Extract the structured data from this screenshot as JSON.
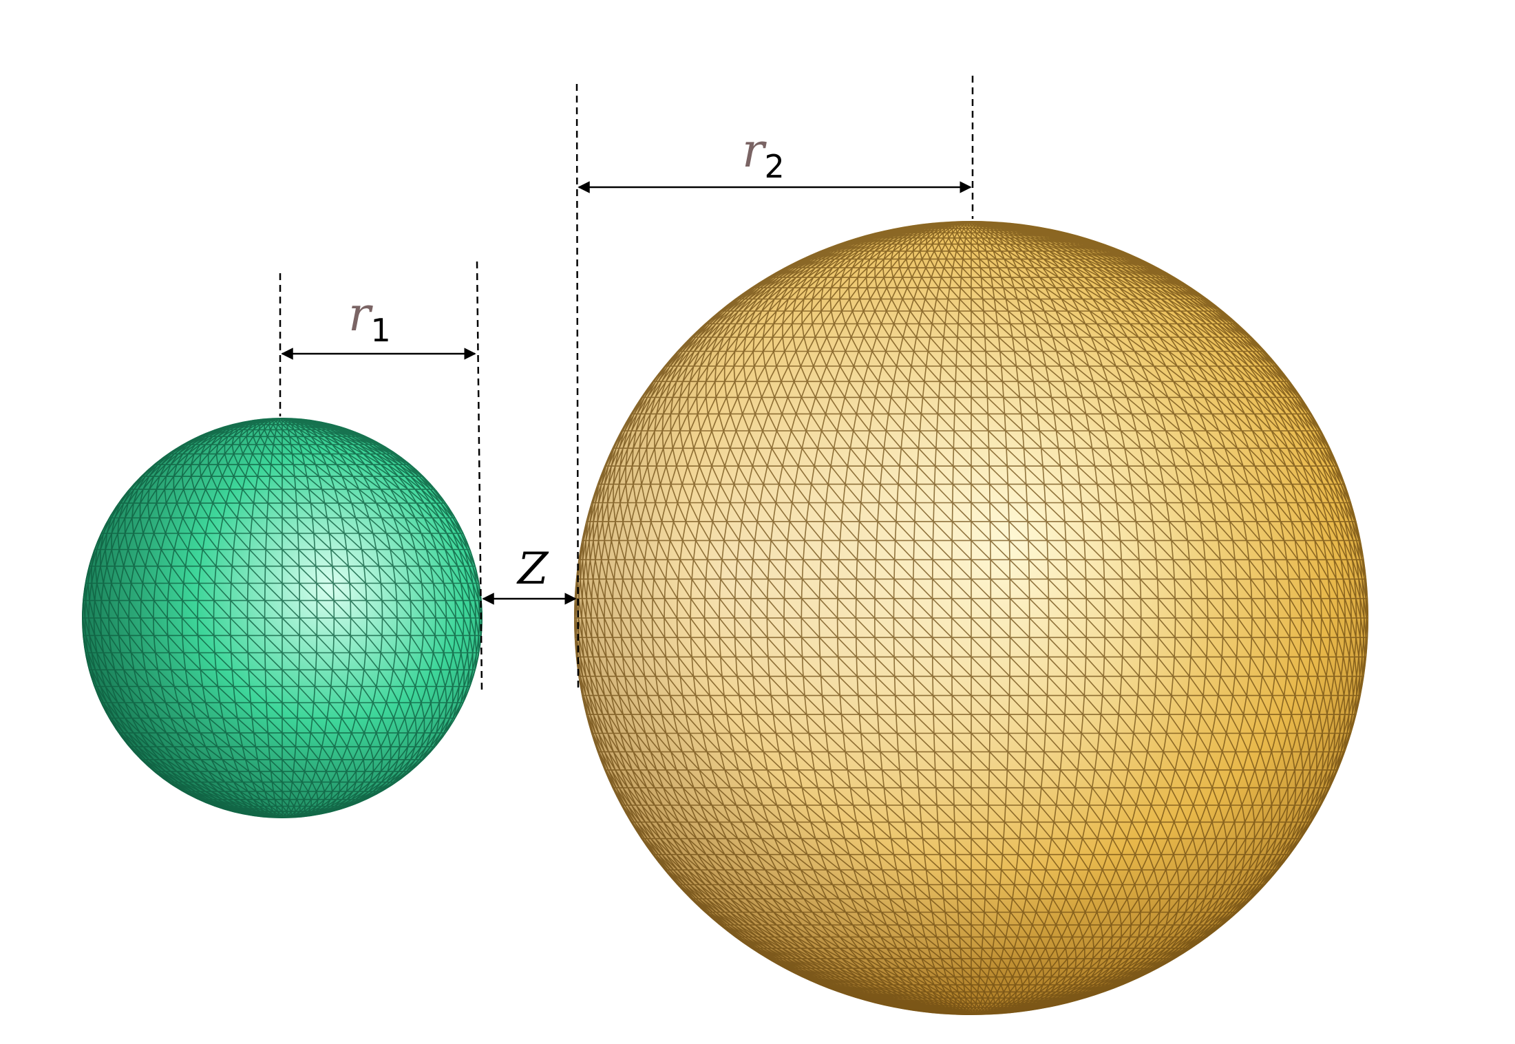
{
  "diagram": {
    "labels": {
      "r1": {
        "main": "r",
        "sub": "1"
      },
      "r2": {
        "main": "r",
        "sub": "2"
      },
      "z": "Z"
    },
    "colors": {
      "background": "#ffffff",
      "sphere1_light": "#d9fff0",
      "sphere1_mid": "#3ed69a",
      "sphere1_dark": "#0b5a3c",
      "sphere1_mesh": "#0f5e40",
      "sphere2_light": "#fff6c8",
      "sphere2_mid": "#e8b84a",
      "sphere2_dark": "#7a4a0a",
      "sphere2_mesh": "#6b4a12",
      "label_r": "#7a6464",
      "label_sub": "#000000",
      "dimension_line": "#000000"
    }
  }
}
